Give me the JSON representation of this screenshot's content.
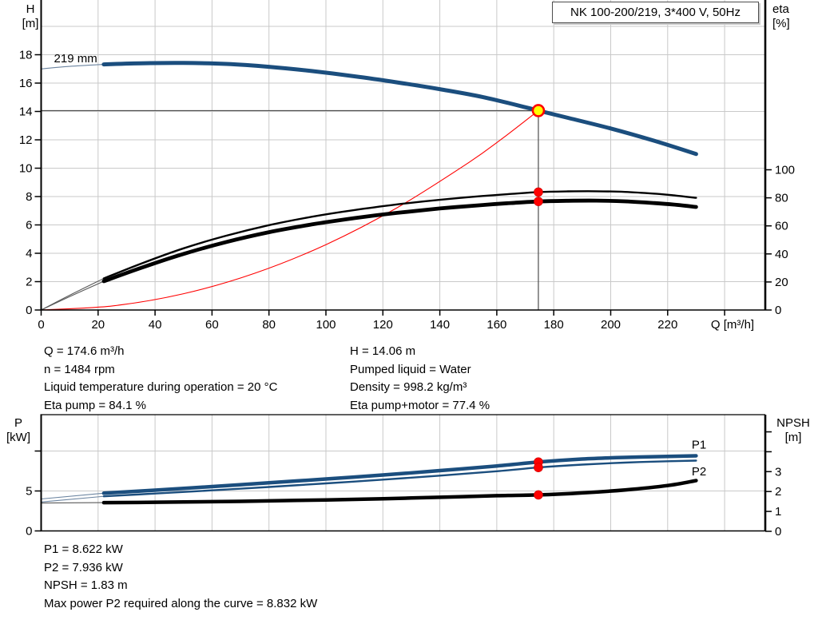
{
  "title": "NK 100-200/219, 3*400 V, 50Hz",
  "colors": {
    "blue": "#1b4e7e",
    "black": "#000000",
    "red": "#ff0000",
    "yellow": "#ffff00",
    "grid": "#c9c9c9",
    "axis": "#000000",
    "crosshair": "#4d4d4d",
    "thin_blue": "#6b84a0",
    "thin_black": "#595959"
  },
  "top_chart": {
    "y_left_title_1": "H",
    "y_left_title_2": "[m]",
    "y_right_title_1": "eta",
    "y_right_title_2": "[%]"
  },
  "bottom_chart": {
    "y_left_title_1": "P",
    "y_left_title_2": "[kW]",
    "y_right_title_1": "NPSH",
    "y_right_title_2": "[m]"
  },
  "info_block": {
    "left": [
      "Q = 174.6 m³/h",
      "n = 1484 rpm",
      "Liquid temperature during operation = 20 °C",
      "Eta pump = 84.1 %"
    ],
    "right": [
      "H = 14.06 m",
      "Pumped liquid = Water",
      "Density = 998.2 kg/m³",
      "Eta pump+motor = 77.4 %"
    ]
  },
  "result_block": [
    "P1 = 8.622 kW",
    "P2 = 7.936 kW",
    "NPSH = 1.83 m",
    "Max power P2 required along the curve = 8.832 kW"
  ],
  "chart_data": [
    {
      "id": "head-eta-chart",
      "type": "line",
      "title": "NK 100-200/219, 3*400 V, 50Hz",
      "xlabel": "Q [m³/h]",
      "x_ticks": [
        0,
        20,
        40,
        60,
        80,
        100,
        120,
        140,
        160,
        180,
        200,
        220
      ],
      "x_grid": [
        20,
        40,
        60,
        80,
        100,
        120,
        140,
        160,
        180,
        200,
        220,
        240
      ],
      "x_range": [
        0,
        254
      ],
      "y_left": {
        "label": "H [m]",
        "ticks": [
          0,
          2,
          4,
          6,
          8,
          10,
          12,
          14,
          16,
          18
        ],
        "grid": [
          2,
          4,
          6,
          8,
          10,
          12,
          14,
          16,
          18,
          20
        ],
        "range": [
          0,
          21.8
        ]
      },
      "y_right": {
        "label": "eta [%]",
        "ticks": [
          0,
          20,
          40,
          60,
          80,
          100
        ],
        "range": [
          0,
          221
        ]
      },
      "annotations": [
        {
          "text": "219 mm",
          "q": 4.5,
          "v": 17.75,
          "axis": "H"
        }
      ],
      "duty_point": {
        "q": 174.6,
        "h": 14.06
      },
      "markers": [
        {
          "q": 174.6,
          "v": 84.1,
          "axis": "eta"
        },
        {
          "q": 174.6,
          "v": 77.4,
          "axis": "eta"
        }
      ],
      "series": [
        {
          "name": "system-curve",
          "color": "red",
          "axis": "H",
          "width": 1.1,
          "thin_until": 0,
          "points": [
            [
              0,
              0
            ],
            [
              25,
              0.29
            ],
            [
              50,
              1.15
            ],
            [
              75,
              2.59
            ],
            [
              100,
              4.61
            ],
            [
              125,
              7.21
            ],
            [
              150,
              10.38
            ],
            [
              162,
              12.1
            ],
            [
              174.6,
              14.06
            ]
          ]
        },
        {
          "name": "eta-pump",
          "color": "black",
          "axis": "eta",
          "width": 2.4,
          "thin_until": 22,
          "points": [
            [
              0,
              0
            ],
            [
              11,
              11.5
            ],
            [
              22,
              22.5
            ],
            [
              35,
              33
            ],
            [
              50,
              44
            ],
            [
              65,
              53
            ],
            [
              80,
              60.5
            ],
            [
              95,
              66.5
            ],
            [
              110,
              71.3
            ],
            [
              125,
              75.3
            ],
            [
              140,
              78.6
            ],
            [
              155,
              81.3
            ],
            [
              165,
              82.8
            ],
            [
              174.6,
              84.1
            ],
            [
              185,
              84.6
            ],
            [
              195,
              84.7
            ],
            [
              205,
              84.2
            ],
            [
              215,
              83.0
            ],
            [
              222,
              81.8
            ],
            [
              230,
              80.0
            ]
          ]
        },
        {
          "name": "eta-pump-motor",
          "color": "black",
          "axis": "eta",
          "width": 4.8,
          "thin_until": 22,
          "points": [
            [
              0,
              0
            ],
            [
              11,
              10.5
            ],
            [
              22,
              20.5
            ],
            [
              35,
              30
            ],
            [
              50,
              40
            ],
            [
              65,
              48.5
            ],
            [
              80,
              55.5
            ],
            [
              95,
              61
            ],
            [
              110,
              65.5
            ],
            [
              125,
              69.3
            ],
            [
              140,
              72.4
            ],
            [
              155,
              74.9
            ],
            [
              165,
              76.3
            ],
            [
              174.6,
              77.4
            ],
            [
              185,
              77.9
            ],
            [
              195,
              78.0
            ],
            [
              205,
              77.5
            ],
            [
              215,
              76.3
            ],
            [
              222,
              75.2
            ],
            [
              230,
              73.5
            ]
          ]
        },
        {
          "name": "head-curve-219mm",
          "color": "blue",
          "axis": "H",
          "width": 5,
          "thin_until": 22,
          "points": [
            [
              0,
              17.0
            ],
            [
              10,
              17.18
            ],
            [
              22,
              17.32
            ],
            [
              35,
              17.4
            ],
            [
              50,
              17.42
            ],
            [
              65,
              17.35
            ],
            [
              80,
              17.15
            ],
            [
              95,
              16.85
            ],
            [
              110,
              16.48
            ],
            [
              125,
              16.05
            ],
            [
              140,
              15.57
            ],
            [
              155,
              15.02
            ],
            [
              170,
              14.3
            ],
            [
              174.6,
              14.06
            ],
            [
              185,
              13.55
            ],
            [
              200,
              12.8
            ],
            [
              215,
              11.95
            ],
            [
              230,
              11.0
            ]
          ]
        }
      ]
    },
    {
      "id": "power-npsh-chart",
      "type": "line",
      "xlabel": "",
      "x_ticks": [],
      "x_grid": [
        20,
        40,
        60,
        80,
        100,
        120,
        140,
        160,
        180,
        200,
        220,
        240
      ],
      "x_range": [
        0,
        254
      ],
      "y_left": {
        "label": "P [kW]",
        "ticks": [
          0,
          5
        ],
        "extra_ticks": [
          10
        ],
        "grid": [
          5,
          10
        ],
        "range": [
          0,
          14.5
        ]
      },
      "y_right": {
        "label": "NPSH [m]",
        "ticks": [
          0,
          1,
          2,
          3
        ],
        "extra_ticks": [
          4,
          5
        ],
        "range": [
          0,
          5.9
        ]
      },
      "curve_labels": [
        {
          "text": "P1",
          "q": 231,
          "v": 10.8,
          "axis": "P"
        },
        {
          "text": "P2",
          "q": 231,
          "v": 7.45,
          "axis": "P"
        }
      ],
      "markers": [
        {
          "q": 174.6,
          "v": 8.622,
          "axis": "P"
        },
        {
          "q": 174.6,
          "v": 7.936,
          "axis": "P"
        },
        {
          "q": 174.6,
          "v": 1.83,
          "axis": "NPSH"
        }
      ],
      "series": [
        {
          "name": "npsh-curve",
          "color": "black",
          "axis": "NPSH",
          "width": 4.5,
          "thin_until": 22,
          "points": [
            [
              0,
              1.42
            ],
            [
              22,
              1.44
            ],
            [
              40,
              1.46
            ],
            [
              60,
              1.49
            ],
            [
              80,
              1.53
            ],
            [
              100,
              1.58
            ],
            [
              120,
              1.64
            ],
            [
              140,
              1.71
            ],
            [
              160,
              1.79
            ],
            [
              174.6,
              1.83
            ],
            [
              190,
              1.93
            ],
            [
              205,
              2.08
            ],
            [
              220,
              2.3
            ],
            [
              230,
              2.55
            ]
          ]
        },
        {
          "name": "p2-curve",
          "color": "blue",
          "axis": "P",
          "width": 2.4,
          "thin_until": 22,
          "points": [
            [
              0,
              3.62
            ],
            [
              22,
              4.33
            ],
            [
              40,
              4.68
            ],
            [
              60,
              5.08
            ],
            [
              80,
              5.5
            ],
            [
              100,
              5.95
            ],
            [
              120,
              6.42
            ],
            [
              140,
              6.92
            ],
            [
              160,
              7.47
            ],
            [
              174.6,
              7.94
            ],
            [
              190,
              8.3
            ],
            [
              205,
              8.55
            ],
            [
              220,
              8.72
            ],
            [
              230,
              8.8
            ]
          ]
        },
        {
          "name": "p1-curve",
          "color": "blue",
          "axis": "P",
          "width": 4.5,
          "thin_until": 22,
          "points": [
            [
              0,
              4.0
            ],
            [
              22,
              4.72
            ],
            [
              40,
              5.1
            ],
            [
              60,
              5.55
            ],
            [
              80,
              6.02
            ],
            [
              100,
              6.5
            ],
            [
              120,
              7.0
            ],
            [
              140,
              7.55
            ],
            [
              160,
              8.13
            ],
            [
              174.6,
              8.62
            ],
            [
              190,
              9.0
            ],
            [
              205,
              9.2
            ],
            [
              220,
              9.32
            ],
            [
              230,
              9.4
            ]
          ]
        }
      ]
    }
  ]
}
